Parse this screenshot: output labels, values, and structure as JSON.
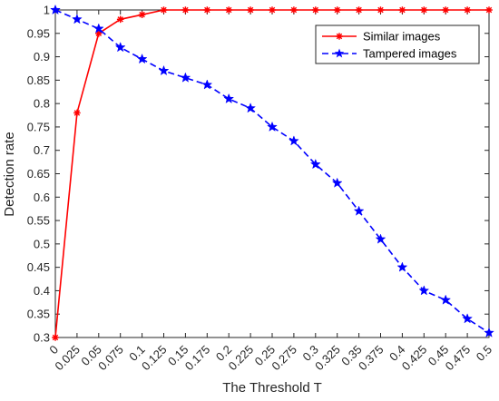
{
  "chart_data": {
    "type": "line",
    "xlabel": "The Threshold T",
    "ylabel": "Detection rate",
    "ylim": [
      0.3,
      1
    ],
    "xlim": [
      0,
      0.5
    ],
    "x_ticks": [
      "0",
      "0.025",
      "0.05",
      "0.075",
      "0.1",
      "0.125",
      "0.15",
      "0.175",
      "0.2",
      "0.225",
      "0.25",
      "0.275",
      "0.3",
      "0.325",
      "0.35",
      "0.375",
      "0.4",
      "0.425",
      "0.45",
      "0.475",
      "0.5"
    ],
    "y_ticks": [
      "0.3",
      "0.35",
      "0.4",
      "0.45",
      "0.5",
      "0.55",
      "0.6",
      "0.65",
      "0.7",
      "0.75",
      "0.8",
      "0.85",
      "0.9",
      "0.95",
      "1"
    ],
    "x": [
      0,
      0.025,
      0.05,
      0.075,
      0.1,
      0.125,
      0.15,
      0.175,
      0.2,
      0.225,
      0.25,
      0.275,
      0.3,
      0.325,
      0.35,
      0.375,
      0.4,
      0.425,
      0.45,
      0.475,
      0.5
    ],
    "grid": false,
    "legend_position": "top-right",
    "series": [
      {
        "name": "Similar images",
        "color": "#ff0000",
        "line_style": "solid",
        "marker": "asterisk",
        "values": [
          0.3,
          0.78,
          0.95,
          0.98,
          0.99,
          1,
          1,
          1,
          1,
          1,
          1,
          1,
          1,
          1,
          1,
          1,
          1,
          1,
          1,
          1,
          1
        ]
      },
      {
        "name": "Tampered images",
        "color": "#0000ff",
        "line_style": "dashed",
        "marker": "star",
        "values": [
          1,
          0.98,
          0.96,
          0.92,
          0.895,
          0.87,
          0.855,
          0.84,
          0.81,
          0.79,
          0.75,
          0.72,
          0.67,
          0.63,
          0.57,
          0.51,
          0.45,
          0.4,
          0.38,
          0.34,
          0.31
        ]
      }
    ]
  }
}
